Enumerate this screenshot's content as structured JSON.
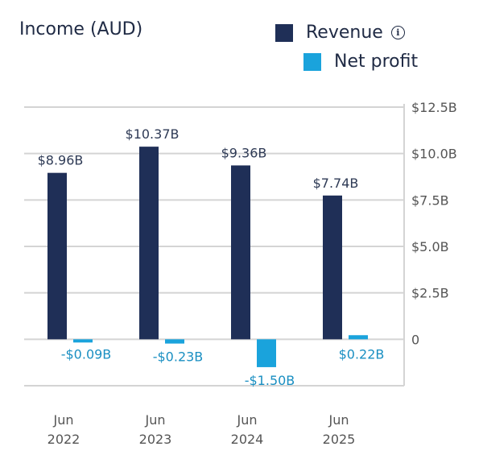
{
  "header": {
    "title": "Income (AUD)",
    "info_icon": "info-icon"
  },
  "colors": {
    "revenue": "#1f2f57",
    "net_profit": "#1aa3dc",
    "grid": "#d4d4d4",
    "axis_text": "#555555",
    "label_revenue": "#2e3a55",
    "label_profit": "#1a8fc2"
  },
  "chart_data": {
    "type": "bar",
    "title": "Income (AUD)",
    "categories": [
      [
        "Jun",
        "2022"
      ],
      [
        "Jun",
        "2023"
      ],
      [
        "Jun",
        "2024"
      ],
      [
        "Jun",
        "2025"
      ]
    ],
    "series": [
      {
        "name": "Revenue",
        "values": [
          8.96,
          10.37,
          9.36,
          7.74
        ],
        "labels": [
          "$8.96B",
          "$10.37B",
          "$9.36B",
          "$7.74B"
        ]
      },
      {
        "name": "Net profit",
        "values": [
          -0.09,
          -0.23,
          -1.5,
          0.22
        ],
        "labels": [
          "-$0.09B",
          "-$0.23B",
          "-$1.50B",
          "$0.22B"
        ]
      }
    ],
    "y_ticks": [
      12.5,
      10.0,
      7.5,
      5.0,
      2.5,
      0
    ],
    "y_tick_labels": [
      "$12.5B",
      "$10.0B",
      "$7.5B",
      "$5.0B",
      "$2.5B",
      "0"
    ],
    "ylim": [
      -2.5,
      12.5
    ],
    "y_axis_side": "right",
    "grid": true,
    "legend": "top-right"
  }
}
